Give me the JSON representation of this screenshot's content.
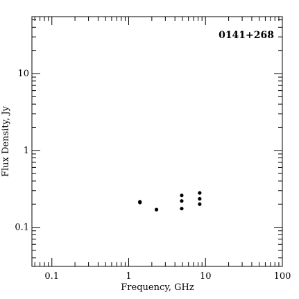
{
  "chart_data": {
    "type": "scatter",
    "title": "0141+268",
    "xlabel": "Frequency, GHz",
    "ylabel": "Flux Density, Jy",
    "xscale": "log",
    "yscale": "log",
    "xlim": [
      0.055,
      100
    ],
    "ylim": [
      0.031,
      55
    ],
    "xticks": [
      "0.1",
      "1",
      "10",
      "100"
    ],
    "yticks": [
      "0.1",
      "1",
      "10"
    ],
    "grid": false,
    "title_placement": "top-right",
    "marker_color": "#000000",
    "points": [
      {
        "x": 1.4,
        "y": 0.21
      },
      {
        "x": 1.4,
        "y": 0.215
      },
      {
        "x": 2.3,
        "y": 0.17
      },
      {
        "x": 4.9,
        "y": 0.26
      },
      {
        "x": 4.9,
        "y": 0.22
      },
      {
        "x": 4.9,
        "y": 0.175
      },
      {
        "x": 8.4,
        "y": 0.28
      },
      {
        "x": 8.4,
        "y": 0.235
      },
      {
        "x": 8.4,
        "y": 0.2
      }
    ]
  }
}
